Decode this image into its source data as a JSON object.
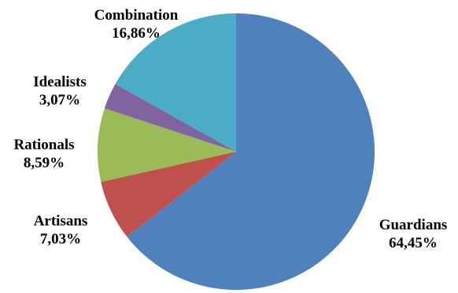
{
  "chart_data": {
    "type": "pie",
    "title": "",
    "slices": [
      {
        "name": "Guardians",
        "value": 64.45,
        "label_value": "64,45%",
        "color": "#4f81bd"
      },
      {
        "name": "Artisans",
        "value": 7.03,
        "label_value": "7,03%",
        "color": "#c0504d"
      },
      {
        "name": "Rationals",
        "value": 8.59,
        "label_value": "8,59%",
        "color": "#9bbb59"
      },
      {
        "name": "Idealists",
        "value": 3.07,
        "label_value": "3,07%",
        "color": "#8064a2"
      },
      {
        "name": "Combination",
        "value": 16.86,
        "label_value": "16,86%",
        "color": "#4bacc6"
      }
    ],
    "start": "12 o'clock",
    "direction": "clockwise",
    "legend": "none",
    "data_labels": "outside, category name and percentage"
  }
}
